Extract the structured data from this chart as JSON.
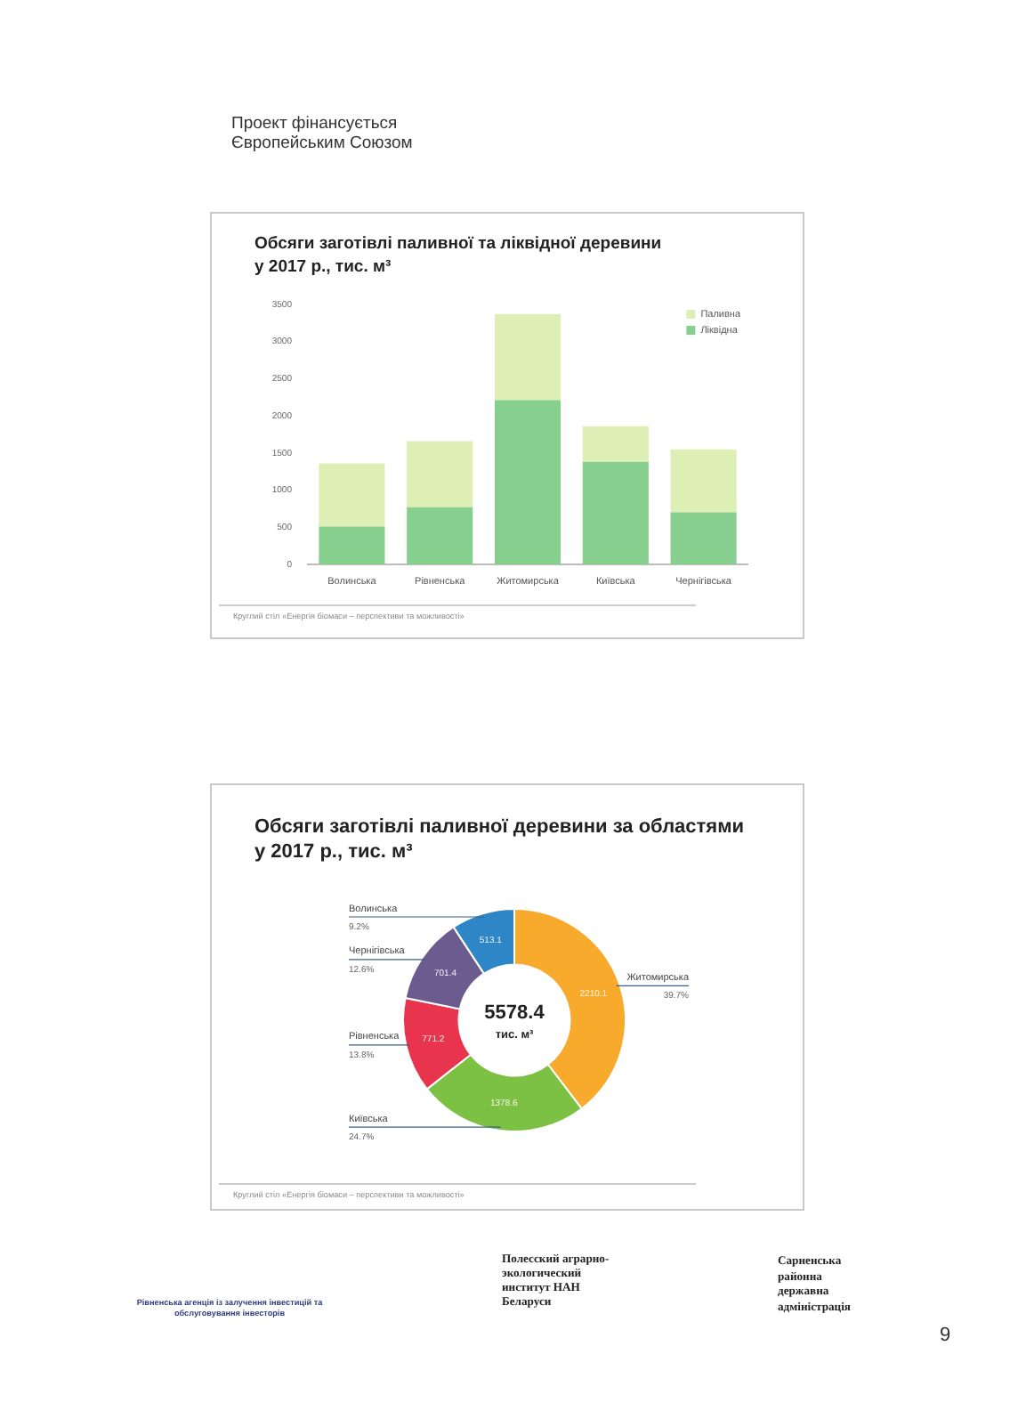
{
  "chart_data": [
    {
      "type": "bar",
      "title": "Обсяги заготівлі паливної та ліквідної деревини у 2017 р., тис. м³",
      "categories": [
        "Волинська",
        "Рівненська",
        "Житомирська",
        "Київська",
        "Чернігівська"
      ],
      "stacked": true,
      "series": [
        {
          "name": "Ліквідна",
          "color": "#86cf8f",
          "values": [
            510,
            770,
            2210,
            1380,
            700
          ]
        },
        {
          "name": "Паливна",
          "color": "#ddefb4",
          "values": [
            850,
            890,
            1160,
            480,
            850
          ]
        }
      ],
      "ylim": [
        0,
        3500
      ],
      "yticks": [
        0,
        500,
        1000,
        1500,
        2000,
        2500,
        3000,
        3500
      ],
      "legend": "top right",
      "annotations": [
        "Круглий стіл «Енергія біомаси – перспективи та можливості»",
        "Проект фінансується Європейським Союзом"
      ]
    },
    {
      "type": "donut",
      "title": "Обсяги заготівлі паливної деревини за областями у 2017 р., тис. м³",
      "categories": [
        "Житомирська",
        "Київська",
        "Рівненська",
        "Чернігівська",
        "Волинська"
      ],
      "values": [
        2210.1,
        1378.6,
        771.2,
        701.4,
        513.1
      ],
      "colors": [
        "#f8aa2c",
        "#7cc144",
        "#e8354d",
        "#6b5b8e",
        "#2f86c6"
      ],
      "data_labels": true,
      "annotations": [
        {
          "text": "39.7%",
          "x": "Житомирська"
        },
        {
          "text": "24.7%",
          "x": "Київська"
        },
        {
          "text": "13.8%",
          "x": "Рівненська"
        },
        {
          "text": "12.6%",
          "x": "Чернігівська"
        },
        {
          "text": "9.2%",
          "x": "Волинська"
        },
        "5578.4",
        "тис. м³",
        "Круглий стіл «Енергія біомаси – перспективи та можливості»",
        "Рівненська агенція із залучення інвестицій та обслуговування інвесторів",
        "Полесский аграрно-экологический институт НАН Беларуси",
        "Сарненська районна державна адміністрація",
        "9"
      ]
    }
  ]
}
